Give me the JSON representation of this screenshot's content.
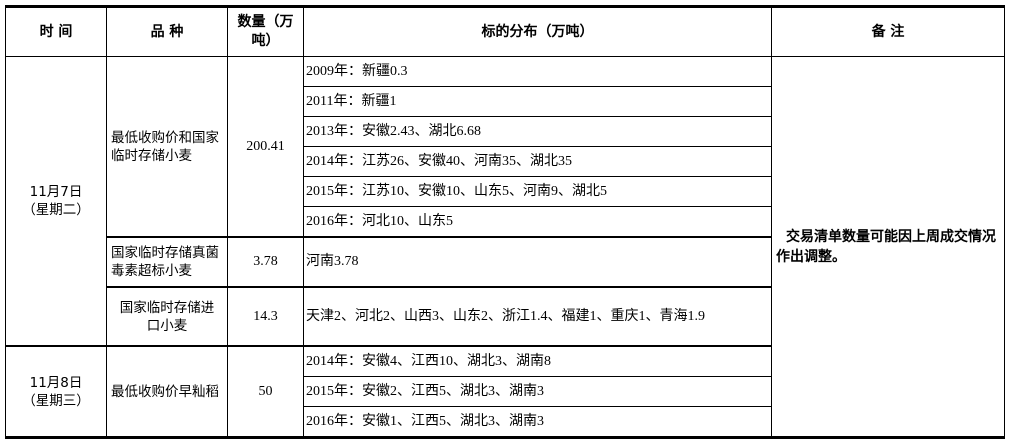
{
  "headers": {
    "time": "时 间",
    "variety": "品 种",
    "quantity": "数量（万吨）",
    "distribution": "标的分布（万吨）",
    "remark": "备 注"
  },
  "groups": [
    {
      "date": "11月7日",
      "weekday": "（星期二）",
      "items": [
        {
          "variety": "最低收购价和国家临时存储小麦",
          "quantity": "200.41",
          "distribution": [
            "2009年：新疆0.3",
            "2011年：新疆1",
            "2013年：安徽2.43、湖北6.68",
            "2014年：江苏26、安徽40、河南35、湖北35",
            "2015年：江苏10、安徽10、山东5、河南9、湖北5",
            "2016年：河北10、山东5"
          ]
        },
        {
          "variety": "国家临时存储真菌毒素超标小麦",
          "quantity": "3.78",
          "distribution": [
            "河南3.78"
          ]
        },
        {
          "variety": "国家临时存储进口小麦",
          "quantity": "14.3",
          "distribution": [
            "天津2、河北2、山西3、山东2、浙江1.4、福建1、重庆1、青海1.9"
          ]
        }
      ]
    },
    {
      "date": "11月8日",
      "weekday": "（星期三）",
      "items": [
        {
          "variety": "最低收购价早籼稻",
          "quantity": "50",
          "distribution": [
            "2014年：安徽4、江西10、湖北3、湖南8",
            "2015年：安徽2、江西5、湖北3、湖南3",
            "2016年：安徽1、江西5、湖北3、湖南3"
          ]
        }
      ]
    }
  ],
  "remark": "交易清单数量可能因上周成交情况作出调整。"
}
